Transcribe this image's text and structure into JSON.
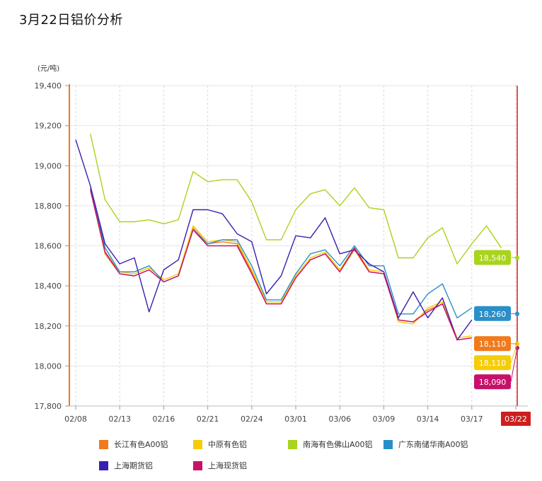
{
  "title": "3月22日铝价分析",
  "chart_data": {
    "type": "line",
    "title": "3月22日铝价分析",
    "ylabel": "(元/吨)",
    "ylim": [
      17800,
      19400
    ],
    "yticks": [
      "17,800",
      "18,000",
      "18,200",
      "18,400",
      "18,600",
      "18,800",
      "19,000",
      "19,200",
      "19,400"
    ],
    "ytick_values": [
      17800,
      18000,
      18200,
      18400,
      18600,
      18800,
      19000,
      19200,
      19400
    ],
    "x_tick_labels": [
      "02/08",
      "02/13",
      "02/16",
      "02/21",
      "02/24",
      "03/01",
      "03/06",
      "03/09",
      "03/14",
      "03/17",
      "03/22"
    ],
    "x_tick_index": [
      0,
      3,
      6,
      9,
      12,
      15,
      18,
      21,
      24,
      27,
      30
    ],
    "highlight_label": "03/22",
    "highlight_color": "#cc1f1f",
    "series": [
      {
        "name": "长江有色A00铝",
        "color": "#f07a1c",
        "values": [
          null,
          18880,
          18560,
          18460,
          18450,
          18480,
          18420,
          18450,
          18690,
          18610,
          18620,
          18610,
          18470,
          18310,
          18310,
          18440,
          18530,
          18560,
          18470,
          18580,
          18470,
          18460,
          18230,
          18220,
          18280,
          18310,
          18130,
          18140,
          null,
          null,
          null
        ],
        "end_value": 18110,
        "end_label": "18,110"
      },
      {
        "name": "中原有色铝",
        "color": "#f5cc08",
        "values": [
          null,
          18890,
          18570,
          18470,
          18460,
          18490,
          18430,
          18460,
          18700,
          18620,
          18630,
          18620,
          18480,
          18320,
          18320,
          18450,
          18540,
          18570,
          18480,
          18590,
          18480,
          18470,
          18220,
          18210,
          18290,
          18320,
          18140,
          18150,
          null,
          null,
          null
        ],
        "end_value": 18110,
        "end_label": "18,110"
      },
      {
        "name": "南海有色佛山A00铝",
        "color": "#a8d41c",
        "values": [
          null,
          19160,
          18830,
          18720,
          18720,
          18730,
          18710,
          18730,
          18970,
          18920,
          18930,
          18930,
          18820,
          18630,
          18630,
          18780,
          18860,
          18880,
          18800,
          18890,
          18790,
          18780,
          18540,
          18540,
          18640,
          18690,
          18510,
          18610,
          18700,
          18590,
          null
        ],
        "end_value": 18540,
        "end_label": "18,540"
      },
      {
        "name": "广东南储华南A00铝",
        "color": "#2a8fc8",
        "values": [
          null,
          18890,
          18590,
          18470,
          18470,
          18500,
          18420,
          18450,
          18680,
          18610,
          18630,
          18630,
          18500,
          18330,
          18330,
          18460,
          18560,
          18580,
          18500,
          18600,
          18500,
          18500,
          18260,
          18260,
          18360,
          18410,
          18240,
          18290,
          null,
          null,
          null
        ],
        "end_value": 18260,
        "end_label": "18,260"
      },
      {
        "name": "上海期货铝",
        "color": "#3a1fb0",
        "values": [
          19130,
          18900,
          18610,
          18510,
          18540,
          18270,
          18480,
          18530,
          18780,
          18780,
          18760,
          18660,
          18620,
          18360,
          18450,
          18650,
          18640,
          18740,
          18560,
          18580,
          18510,
          18470,
          18240,
          18370,
          18240,
          18340,
          18130,
          18230,
          null,
          null,
          null
        ],
        "end_value": null,
        "end_label": ""
      },
      {
        "name": "上海现货铝",
        "color": "#c8106a",
        "values": [
          null,
          18880,
          18570,
          18460,
          18450,
          18480,
          18420,
          18450,
          18680,
          18600,
          18600,
          18600,
          18460,
          18310,
          18310,
          18440,
          18530,
          18560,
          18470,
          18590,
          18470,
          18460,
          18230,
          18220,
          18270,
          18310,
          18130,
          18140,
          null,
          null,
          null
        ],
        "end_value": 18090,
        "end_label": "18,090"
      }
    ]
  }
}
